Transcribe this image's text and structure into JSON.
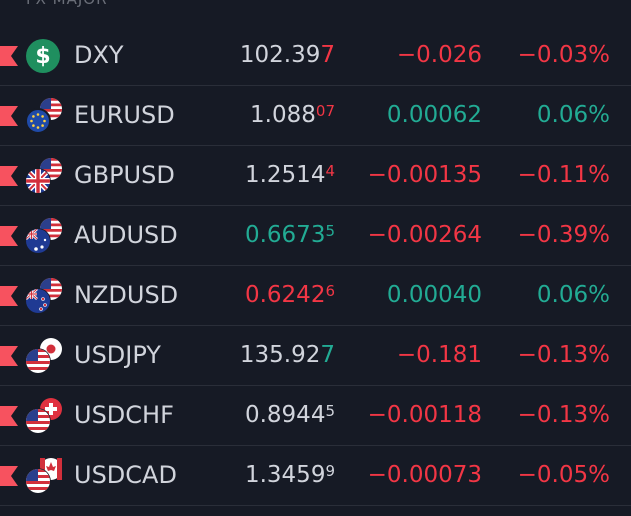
{
  "header": {
    "title": "FX MAJOR"
  },
  "colors": {
    "background": "#161a25",
    "negative": "#f23645",
    "positive": "#22ab94",
    "neutral": "#d1d4dc",
    "marker": "#f7525f"
  },
  "rows": [
    {
      "symbol": "DXY",
      "icon": "dollar-circle-icon",
      "price_main": "102.39",
      "price_tail": "7",
      "price_tail_sup": false,
      "price_color": "neutral",
      "tail_color": "negative",
      "change": "−0.026",
      "change_color": "negative",
      "change_pct": "−0.03%",
      "pct_color": "negative"
    },
    {
      "symbol": "EURUSD",
      "icon": "eur-usd-flags-icon",
      "price_main": "1.088",
      "price_tail": "07",
      "price_tail_sup": true,
      "price_color": "neutral",
      "tail_color": "negative",
      "change": "0.00062",
      "change_color": "positive",
      "change_pct": "0.06%",
      "pct_color": "positive"
    },
    {
      "symbol": "GBPUSD",
      "icon": "gbp-usd-flags-icon",
      "price_main": "1.2514",
      "price_tail": "4",
      "price_tail_sup": true,
      "price_color": "neutral",
      "tail_color": "negative",
      "change": "−0.00135",
      "change_color": "negative",
      "change_pct": "−0.11%",
      "pct_color": "negative"
    },
    {
      "symbol": "AUDUSD",
      "icon": "aud-usd-flags-icon",
      "price_main": "0.6673",
      "price_tail": "5",
      "price_tail_sup": true,
      "price_color": "positive",
      "tail_color": "positive",
      "change": "−0.00264",
      "change_color": "negative",
      "change_pct": "−0.39%",
      "pct_color": "negative"
    },
    {
      "symbol": "NZDUSD",
      "icon": "nzd-usd-flags-icon",
      "price_main": "0.6242",
      "price_tail": "6",
      "price_tail_sup": true,
      "price_color": "negative",
      "tail_color": "negative",
      "change": "0.00040",
      "change_color": "positive",
      "change_pct": "0.06%",
      "pct_color": "positive"
    },
    {
      "symbol": "USDJPY",
      "icon": "usd-jpy-flags-icon",
      "price_main": "135.92",
      "price_tail": "7",
      "price_tail_sup": false,
      "price_color": "neutral",
      "tail_color": "positive",
      "change": "−0.181",
      "change_color": "negative",
      "change_pct": "−0.13%",
      "pct_color": "negative"
    },
    {
      "symbol": "USDCHF",
      "icon": "usd-chf-flags-icon",
      "price_main": "0.8944",
      "price_tail": "5",
      "price_tail_sup": true,
      "price_color": "neutral",
      "tail_color": "neutral",
      "change": "−0.00118",
      "change_color": "negative",
      "change_pct": "−0.13%",
      "pct_color": "negative"
    },
    {
      "symbol": "USDCAD",
      "icon": "usd-cad-flags-icon",
      "price_main": "1.3459",
      "price_tail": "9",
      "price_tail_sup": true,
      "price_color": "neutral",
      "tail_color": "neutral",
      "change": "−0.00073",
      "change_color": "negative",
      "change_pct": "−0.05%",
      "pct_color": "negative"
    }
  ]
}
